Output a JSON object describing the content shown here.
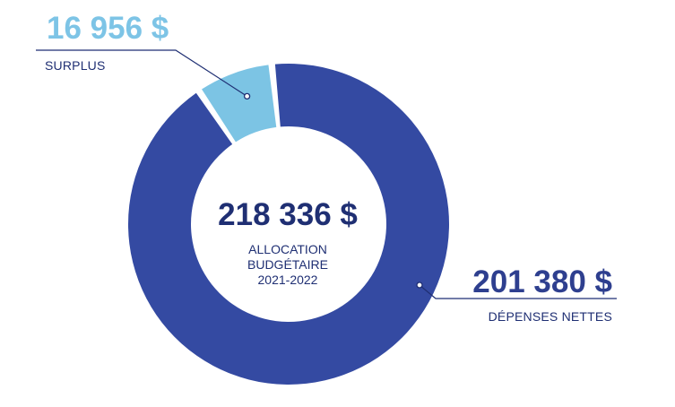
{
  "chart_data": {
    "type": "pie",
    "donut": true,
    "slices": [
      {
        "label": "SURPLUS",
        "value_label": "16 956 $",
        "value": 16956,
        "color": "#7cc4e4"
      },
      {
        "label": "DÉPENSES NETTES",
        "value_label": "201 380 $",
        "value": 201380,
        "color": "#344aa2"
      }
    ],
    "total": {
      "value_label": "218 336 $",
      "value": 218336,
      "lines": [
        "ALLOCATION",
        "BUDGÉTAIRE",
        "2021-2022"
      ]
    }
  },
  "colors": {
    "surplus": "#7cc4e4",
    "depenses": "#344aa2",
    "text_dark": "#1f2f73",
    "leader_line": "#1f2f73"
  }
}
